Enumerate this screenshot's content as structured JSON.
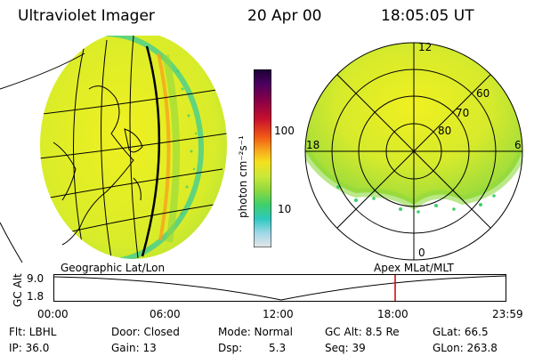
{
  "header": {
    "instrument": "Ultraviolet Imager",
    "date": "20 Apr 00",
    "time": "18:05:05 UT"
  },
  "colorbar": {
    "unit_label": "photon cm⁻²s⁻¹",
    "ticks": [
      "100",
      "10"
    ],
    "colors": [
      "#1a0033",
      "#4b0060",
      "#8b0045",
      "#c8102e",
      "#f05a14",
      "#f7a21b",
      "#f5e01e",
      "#c9e838",
      "#8fd93f",
      "#3fcf6a",
      "#2ec9c0",
      "#a0d8e8",
      "#e6e6e6"
    ]
  },
  "globe_view": {
    "title": "Geographic Lat/Lon"
  },
  "polar_view": {
    "title": "Apex MLat/MLT",
    "mlt_labels": {
      "top": "12",
      "left": "18",
      "right": "6",
      "bottom": "0"
    },
    "lat_labels": [
      "60",
      "70",
      "80"
    ]
  },
  "altitude_plot": {
    "ylabel": "GC Alt",
    "yticks": [
      "9.0",
      "1.8"
    ],
    "xticks": [
      "00:00",
      "06:00",
      "12:00",
      "18:00",
      "23:59"
    ],
    "current_time_marker_color": "#cc0000"
  },
  "info": {
    "filter": "Flt: LBHL",
    "door": "Door: Closed",
    "mode": "Mode: Normal",
    "gc_alt": "GC Alt: 8.5 Re",
    "glat": "GLat:  66.5",
    "ip": "IP: 36.0",
    "gain": "Gain: 13",
    "dsp_label": "Dsp:",
    "dsp_value": "5.3",
    "seq": "Seq: 39",
    "glon": "GLon: 263.8"
  }
}
